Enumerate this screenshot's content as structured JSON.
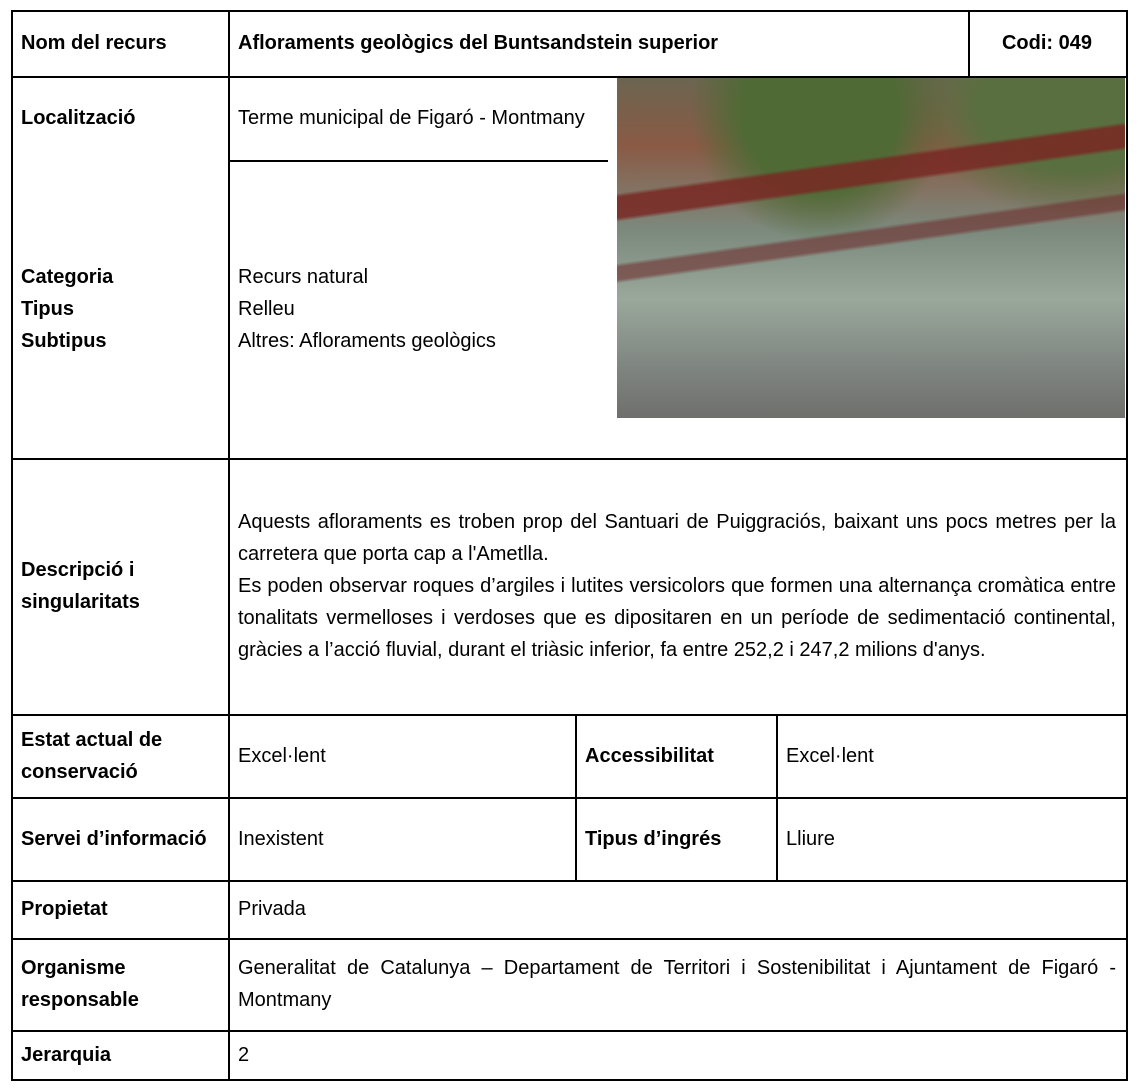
{
  "header": {
    "label": "Nom del recurs",
    "title": "Afloraments geològics del Buntsandstein superior",
    "code": "Codi: 049"
  },
  "location": {
    "label": "Localització",
    "value": "Terme municipal de Figaró - Montmany"
  },
  "category": {
    "labels": [
      "Categoria",
      "Tipus",
      "Subtipus"
    ],
    "values": [
      "Recurs natural",
      "Relleu",
      "Altres: Afloraments geològics"
    ]
  },
  "description": {
    "label": "Descripció i singularitats",
    "paragraphs": [
      "Aquests afloraments es troben prop del Santuari de Puiggraciós, baixant uns pocs metres per la carretera que porta cap a l'Ametlla.",
      "Es poden observar roques d’argiles i lutites versicolors que formen una alternança cromàtica entre tonalitats vermelloses i verdoses que es dipositaren en un període de sedimentació continental, gràcies a l’acció fluvial, durant el triàsic inferior, fa entre 252,2 i 247,2 milions d'anys."
    ]
  },
  "conservation": {
    "label": "Estat actual de conservació",
    "value": "Excel·lent",
    "label2": "Accessibilitat",
    "value2": "Excel·lent"
  },
  "information": {
    "label": "Servei d’informació",
    "value": "Inexistent",
    "label2": "Tipus d’ingrés",
    "value2": "Lliure"
  },
  "ownership": {
    "label": "Propietat",
    "value": "Privada"
  },
  "organism": {
    "label": "Organisme responsable",
    "value": "Generalitat de Catalunya – Departament de Territori i Sostenibilitat i Ajuntament de Figaró - Montmany"
  },
  "hierarchy": {
    "label": "Jerarquia",
    "value": "2"
  }
}
